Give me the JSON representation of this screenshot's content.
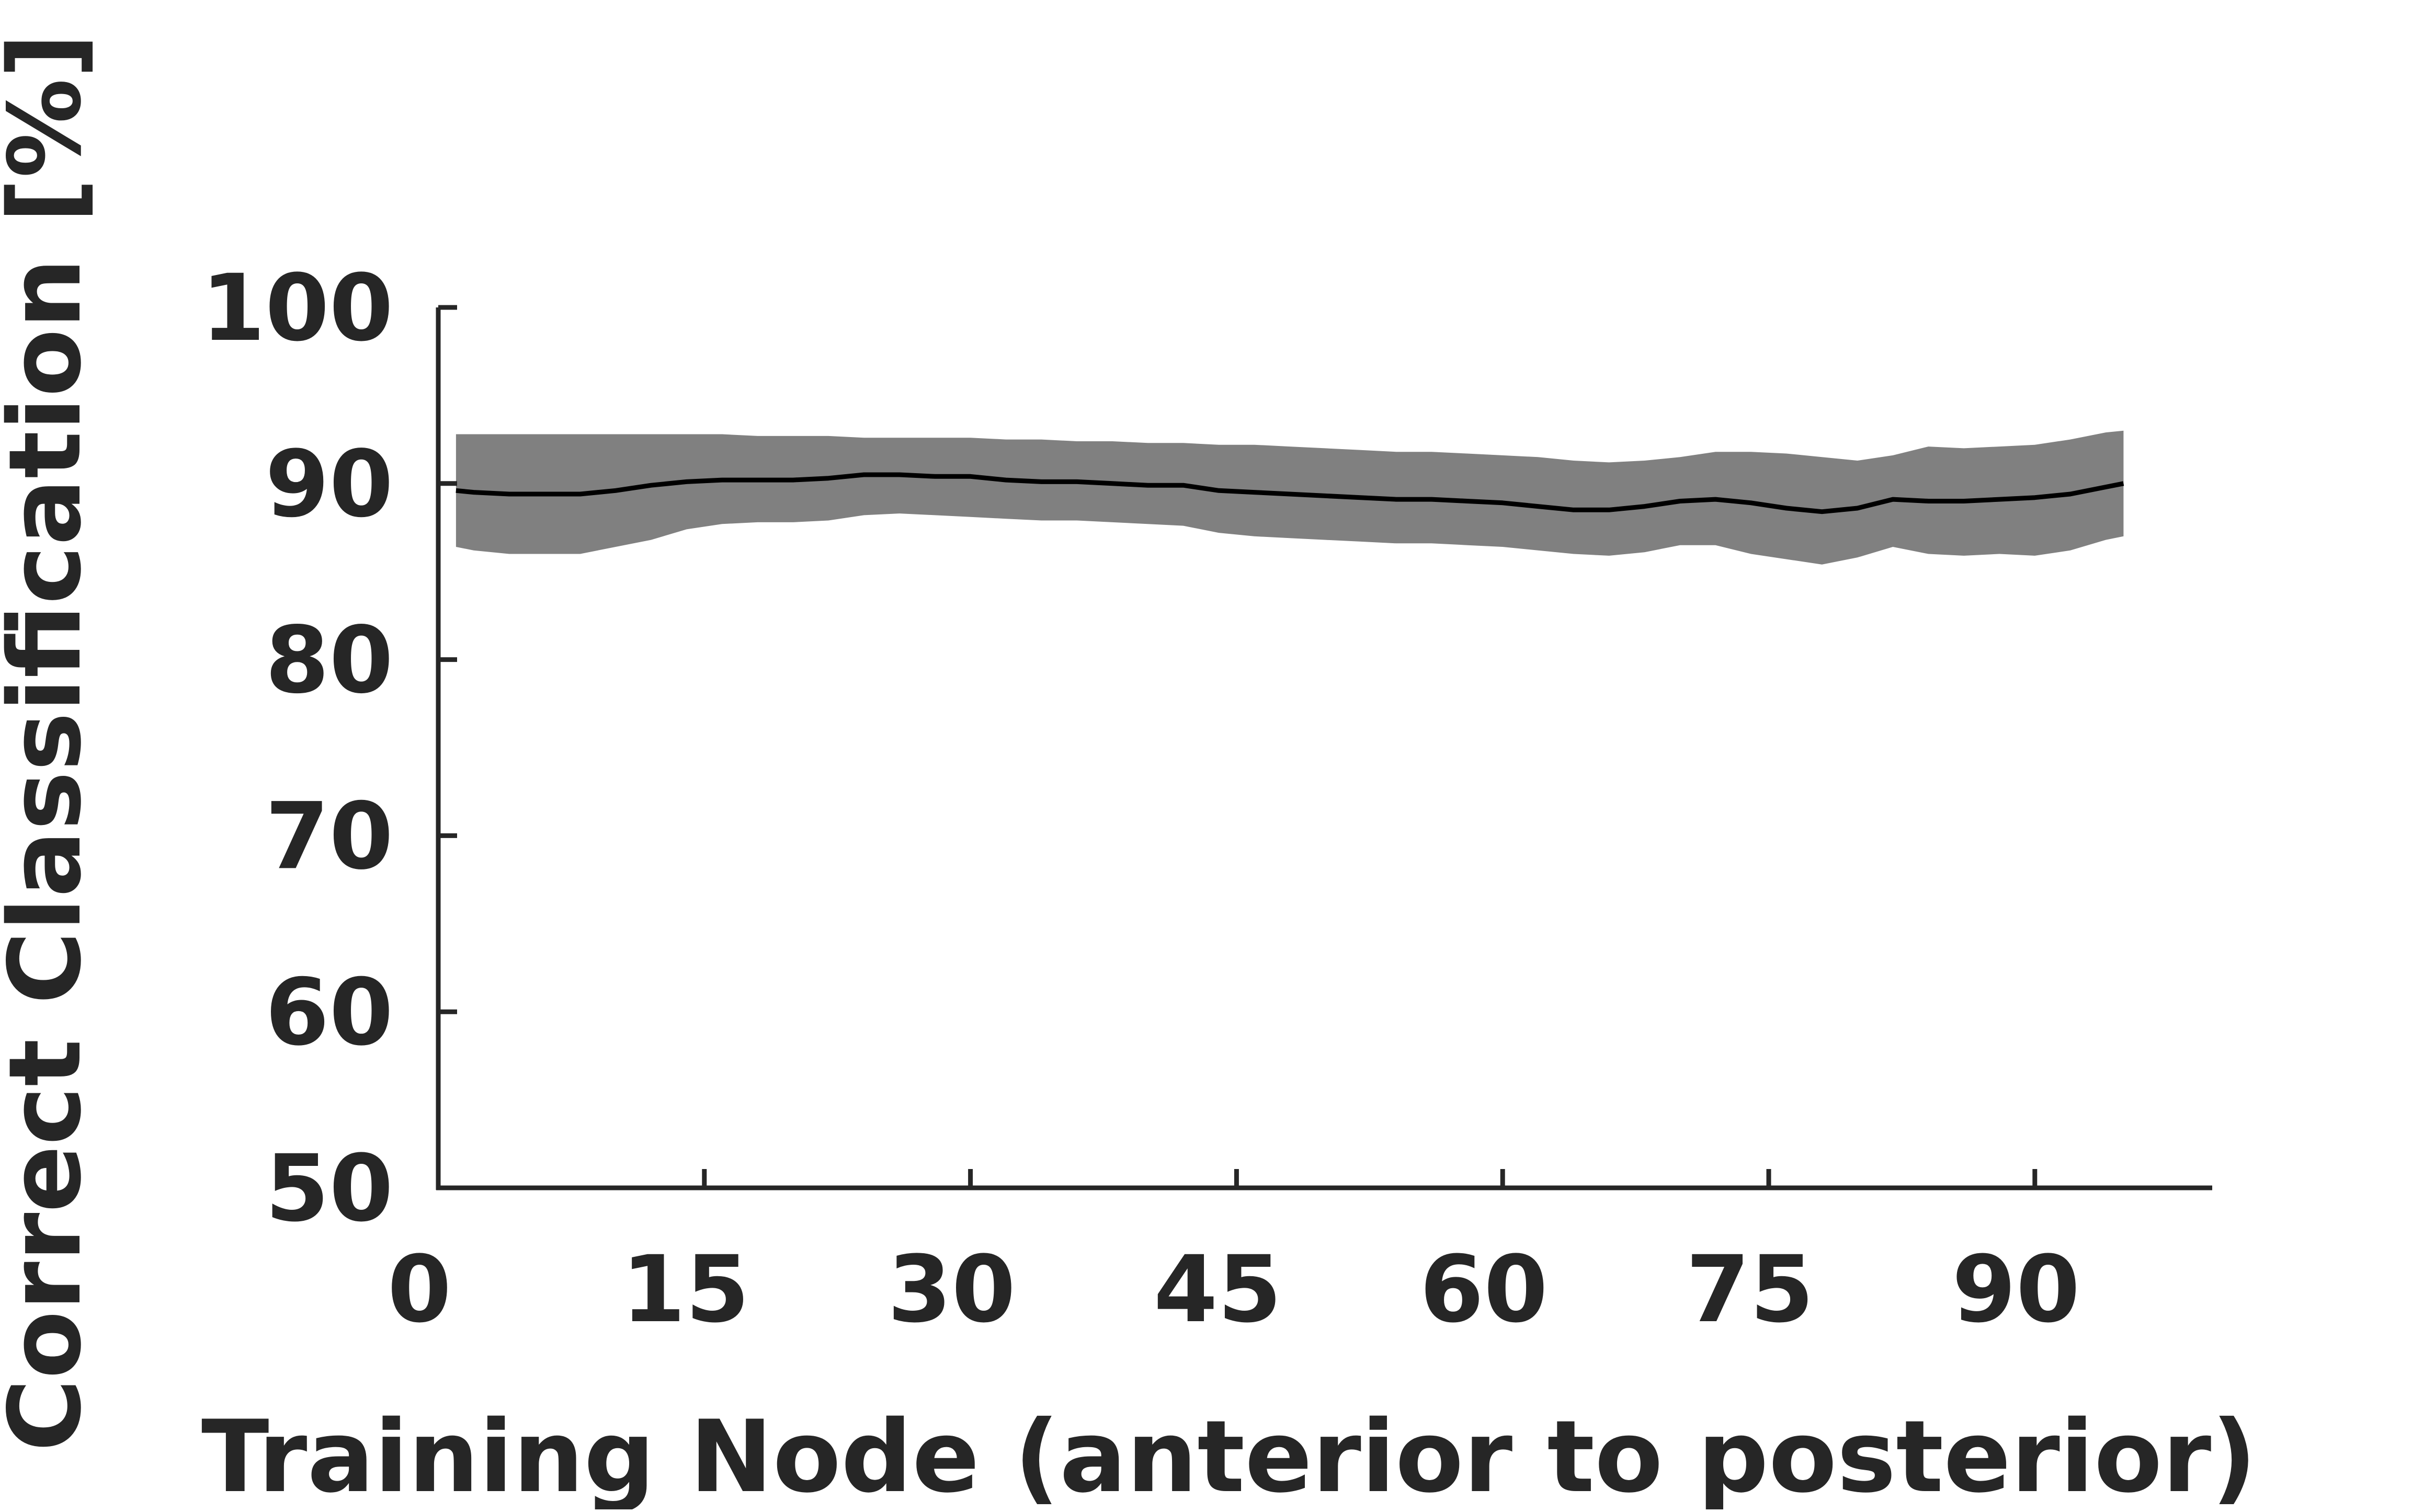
{
  "chart_data": {
    "type": "line",
    "title": "",
    "xlabel": "Training Node (anterior to posterior)",
    "ylabel": "Correct Classification [%]",
    "xlim": [
      0,
      100
    ],
    "ylim": [
      50,
      100
    ],
    "xticks": [
      0,
      15,
      30,
      45,
      60,
      75,
      90
    ],
    "yticks": [
      50,
      60,
      70,
      80,
      90,
      100
    ],
    "grid": false,
    "legend": "none",
    "colors": {
      "line": "#000000",
      "band": "#808080",
      "axis": "#262626"
    },
    "series": [
      {
        "x": [
          1,
          2,
          4,
          6,
          8,
          10,
          12,
          14,
          16,
          18,
          20,
          22,
          24,
          26,
          28,
          30,
          32,
          34,
          36,
          38,
          40,
          42,
          44,
          46,
          48,
          50,
          52,
          54,
          56,
          58,
          60,
          62,
          64,
          66,
          68,
          70,
          72,
          74,
          76,
          78,
          80,
          82,
          84,
          86,
          88,
          90,
          92,
          94,
          95
        ],
        "y": [
          89.6,
          89.5,
          89.4,
          89.4,
          89.4,
          89.6,
          89.9,
          90.1,
          90.2,
          90.2,
          90.2,
          90.3,
          90.5,
          90.5,
          90.4,
          90.4,
          90.2,
          90.1,
          90.1,
          90.0,
          89.9,
          89.9,
          89.6,
          89.5,
          89.4,
          89.3,
          89.2,
          89.1,
          89.1,
          89.0,
          88.9,
          88.7,
          88.5,
          88.5,
          88.7,
          89.0,
          89.1,
          88.9,
          88.6,
          88.4,
          88.6,
          89.1,
          89.0,
          89.0,
          89.1,
          89.2,
          89.4,
          89.8,
          90.0
        ],
        "upper": [
          92.8,
          92.8,
          92.8,
          92.8,
          92.8,
          92.8,
          92.8,
          92.8,
          92.8,
          92.7,
          92.7,
          92.7,
          92.6,
          92.6,
          92.6,
          92.6,
          92.5,
          92.5,
          92.4,
          92.4,
          92.3,
          92.3,
          92.2,
          92.2,
          92.1,
          92.0,
          91.9,
          91.8,
          91.8,
          91.7,
          91.6,
          91.5,
          91.3,
          91.2,
          91.3,
          91.5,
          91.8,
          91.8,
          91.7,
          91.5,
          91.3,
          91.6,
          92.1,
          92.0,
          92.1,
          92.2,
          92.5,
          92.9,
          93.0
        ],
        "lower": [
          86.4,
          86.2,
          86.0,
          86.0,
          86.0,
          86.4,
          86.8,
          87.4,
          87.7,
          87.8,
          87.8,
          87.9,
          88.2,
          88.3,
          88.2,
          88.1,
          88.0,
          87.9,
          87.9,
          87.8,
          87.7,
          87.6,
          87.2,
          87.0,
          86.9,
          86.8,
          86.7,
          86.6,
          86.6,
          86.5,
          86.4,
          86.2,
          86.0,
          85.9,
          86.1,
          86.5,
          86.5,
          86.0,
          85.7,
          85.4,
          85.8,
          86.4,
          86.0,
          85.9,
          86.0,
          85.9,
          86.2,
          86.8,
          87.0
        ]
      }
    ]
  }
}
